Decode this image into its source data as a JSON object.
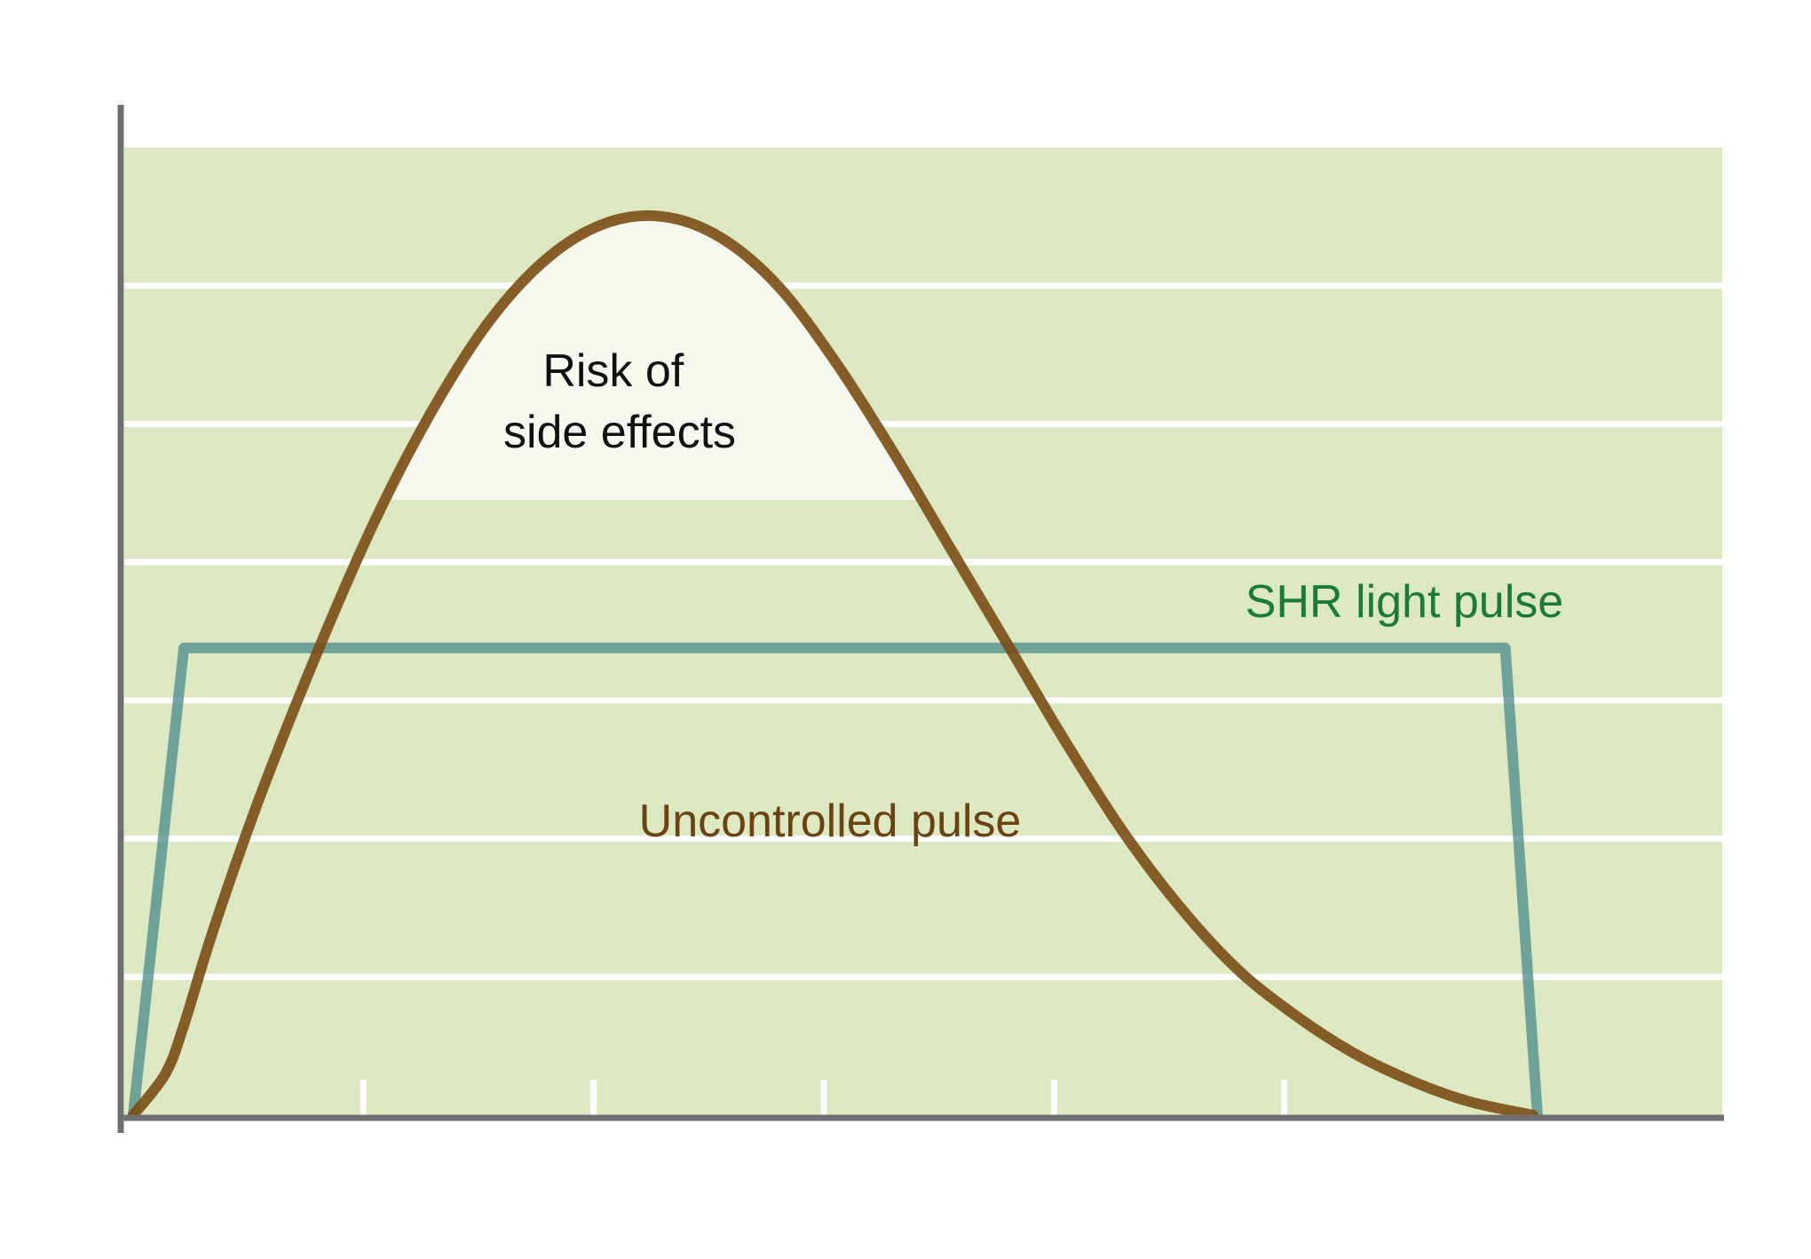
{
  "chart_data": {
    "type": "line",
    "title": "",
    "xlabel": "",
    "ylabel": "",
    "xlim": [
      0,
      6
    ],
    "ylim": [
      0,
      7
    ],
    "grid": true,
    "x_ticks": [
      1,
      2,
      3,
      4,
      5
    ],
    "highlight_region": {
      "label_lines": [
        "Risk of",
        "side effects"
      ],
      "threshold": 4.45
    },
    "series": [
      {
        "name": "SHR light pulse",
        "color": "#4a8a8a",
        "label_color": "#1a7a3a",
        "points": [
          [
            0,
            0
          ],
          [
            0.22,
            3.38
          ],
          [
            5.96,
            3.38
          ],
          [
            6.1,
            0
          ]
        ]
      },
      {
        "name": "Uncontrolled pulse",
        "color": "#7a4c14",
        "label_color": "#6b4212",
        "points": [
          [
            0,
            0
          ],
          [
            0.14,
            0.3
          ],
          [
            0.22,
            0.65
          ],
          [
            0.35,
            1.35
          ],
          [
            0.55,
            2.3
          ],
          [
            0.8,
            3.35
          ],
          [
            1.05,
            4.3
          ],
          [
            1.3,
            5.1
          ],
          [
            1.55,
            5.75
          ],
          [
            1.8,
            6.2
          ],
          [
            2.05,
            6.45
          ],
          [
            2.3,
            6.5
          ],
          [
            2.55,
            6.35
          ],
          [
            2.8,
            6.0
          ],
          [
            3.05,
            5.45
          ],
          [
            3.3,
            4.8
          ],
          [
            3.55,
            4.1
          ],
          [
            3.8,
            3.4
          ],
          [
            4.05,
            2.7
          ],
          [
            4.3,
            2.05
          ],
          [
            4.55,
            1.5
          ],
          [
            4.8,
            1.05
          ],
          [
            5.05,
            0.72
          ],
          [
            5.3,
            0.45
          ],
          [
            5.55,
            0.25
          ],
          [
            5.8,
            0.1
          ],
          [
            6.08,
            0
          ]
        ]
      }
    ],
    "colors": {
      "plot_bg": "#dce8c2",
      "grid": "#ffffff",
      "axis": "#707070",
      "highlight": "#f7f9f1",
      "highlight_text": "#111111"
    }
  }
}
